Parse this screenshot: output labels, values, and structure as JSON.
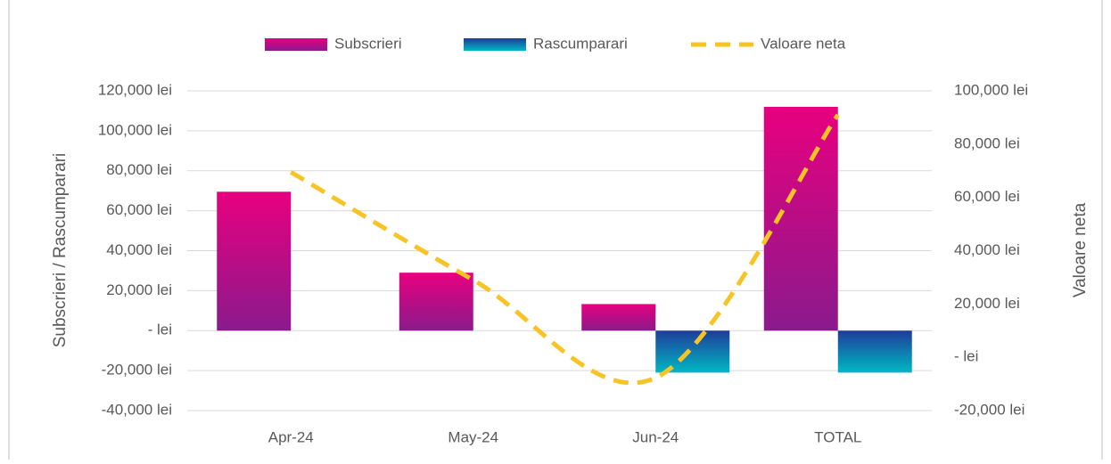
{
  "chart_data": {
    "type": "bar-line",
    "categories": [
      "Apr-24",
      "May-24",
      "Jun-24",
      "TOTAL"
    ],
    "series": [
      {
        "name": "Subscrieri",
        "type": "bar",
        "color": "#e8007f",
        "gradient": [
          "#e8007f",
          "#8a1a8c"
        ],
        "values": [
          69500,
          29000,
          13300,
          112000
        ]
      },
      {
        "name": "Rascumparari",
        "type": "bar",
        "color": "#1f3c99",
        "gradient": [
          "#1f3c99",
          "#00b8c4"
        ],
        "values": [
          0,
          0,
          -21000,
          -21000
        ]
      },
      {
        "name": "Valoare neta",
        "type": "line",
        "axis": "y2",
        "color": "#f7c325",
        "dashed": true,
        "values": [
          69500,
          29000,
          -7700,
          91000
        ]
      }
    ],
    "ylabel": "Subscrieri / Rascumparari",
    "y2label": "Valoare neta",
    "ylim": [
      -40000,
      120000
    ],
    "yticks": [
      {
        "value": -40000,
        "label": "-40,000 lei"
      },
      {
        "value": -20000,
        "label": "-20,000 lei"
      },
      {
        "value": 0,
        "label": "- lei"
      },
      {
        "value": 20000,
        "label": "20,000 lei"
      },
      {
        "value": 40000,
        "label": "40,000 lei"
      },
      {
        "value": 60000,
        "label": "60,000 lei"
      },
      {
        "value": 80000,
        "label": "80,000 lei"
      },
      {
        "value": 100000,
        "label": "100,000 lei"
      },
      {
        "value": 120000,
        "label": "120,000 lei"
      }
    ],
    "y2lim": [
      -20000,
      100000
    ],
    "y2ticks": [
      {
        "value": -20000,
        "label": "-20,000 lei"
      },
      {
        "value": 0,
        "label": "- lei"
      },
      {
        "value": 20000,
        "label": "20,000 lei"
      },
      {
        "value": 40000,
        "label": "40,000 lei"
      },
      {
        "value": 60000,
        "label": "60,000 lei"
      },
      {
        "value": 80000,
        "label": "80,000 lei"
      },
      {
        "value": 100000,
        "label": "100,000 lei"
      }
    ],
    "grid": true,
    "legend": "top"
  }
}
